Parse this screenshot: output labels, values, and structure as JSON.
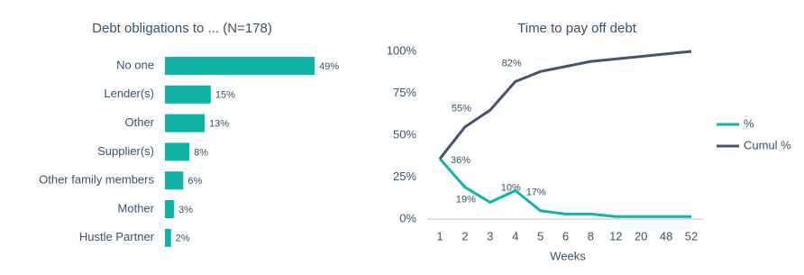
{
  "chart_data": [
    {
      "type": "hbar",
      "title": "Debt obligations to ... (N=178)",
      "categories": [
        "No one",
        "Lender(s)",
        "Other",
        "Supplier(s)",
        "Other family members",
        "Mother",
        "Hustle Partner"
      ],
      "values": [
        49,
        15,
        13,
        8,
        6,
        3,
        2
      ],
      "value_labels": [
        "49%",
        "15%",
        "13%",
        "8%",
        "6%",
        "3%",
        "2%"
      ],
      "color": "#12b2a6"
    },
    {
      "type": "line",
      "title": "Time to pay off debt",
      "x_label": "Weeks",
      "categories": [
        "1",
        "2",
        "3",
        "4",
        "5",
        "6",
        "8",
        "12",
        "20",
        "48",
        "52"
      ],
      "series": [
        {
          "name": "%",
          "color": "#12b2a6",
          "values": [
            36,
            19,
            10,
            17,
            5,
            3,
            3,
            1.5,
            1.5,
            1.5,
            1.5
          ],
          "value_labels": [
            "36%",
            "19%",
            "10%",
            "17%",
            null,
            null,
            null,
            null,
            null,
            null,
            null
          ]
        },
        {
          "name": "Cumul %",
          "color": "#44546a",
          "values": [
            36,
            55,
            65,
            82,
            88,
            91,
            94,
            95.5,
            97,
            98.5,
            100
          ],
          "value_labels": [
            null,
            "55%",
            null,
            "82%",
            null,
            null,
            null,
            null,
            null,
            null,
            null
          ]
        }
      ],
      "ylim": [
        0,
        100
      ],
      "yticks": [
        {
          "value": 0,
          "label": "0%"
        },
        {
          "value": 25,
          "label": "25%"
        },
        {
          "value": 50,
          "label": "50%"
        },
        {
          "value": 75,
          "label": "75%"
        },
        {
          "value": 100,
          "label": "100%"
        }
      ],
      "legend": "right"
    }
  ]
}
